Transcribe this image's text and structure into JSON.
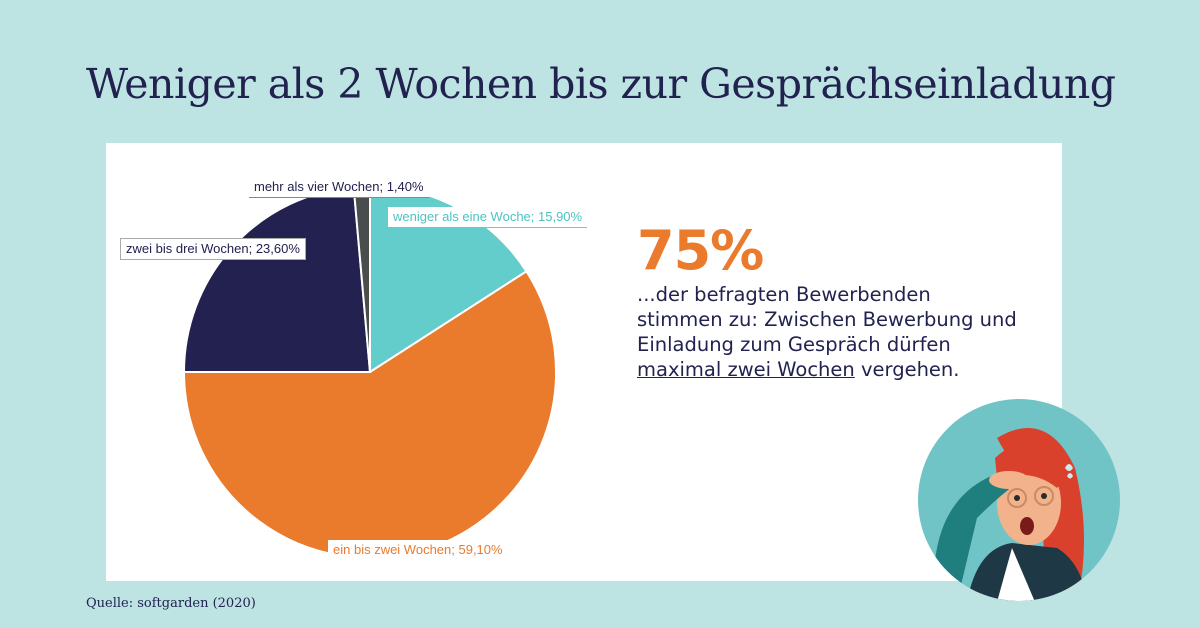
{
  "title": "Weniger als 2 Wochen bis zur Gesprächseinladung",
  "source": "Quelle: softgarden (2020)",
  "highlight": {
    "value": "75%",
    "text_1": "...der befragten Bewerbenden stimmen zu: Zwischen Bewerbung und Einladung zum Gespräch dürfen ",
    "text_underlined": "maximal zwei Wochen",
    "text_2": " vergehen."
  },
  "colors": {
    "background": "#bde3e3",
    "title": "#21224f",
    "accent": "#ea7a2c",
    "teal": "#62cdcb",
    "navy": "#222150",
    "gray": "#4a4d4d"
  },
  "chart_data": {
    "type": "pie",
    "slices": [
      {
        "label": "weniger als eine Woche; 15,90%",
        "value": 15.9,
        "color": "#62cdcb"
      },
      {
        "label": "ein bis zwei Wochen; 59,10%",
        "value": 59.1,
        "color": "#ea7a2c"
      },
      {
        "label": "zwei bis drei Wochen; 23,60%",
        "value": 23.6,
        "color": "#222150"
      },
      {
        "label": "mehr als vier Wochen; 1,40%",
        "value": 1.4,
        "color": "#4a4d4d"
      }
    ]
  }
}
